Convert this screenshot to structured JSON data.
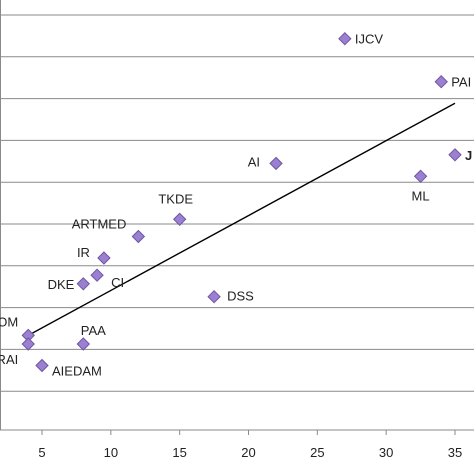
{
  "chart_data": {
    "type": "scatter",
    "title": "",
    "xlabel": "",
    "ylabel": "",
    "xlim": [
      1.5,
      37
    ],
    "x_ticks": [
      5,
      10,
      15,
      20,
      25,
      30,
      35
    ],
    "y_grid": true,
    "points": [
      {
        "label": "IJCV",
        "x": 27,
        "y": 0.91
      },
      {
        "label": "PAI",
        "x": 34,
        "y": 0.81
      },
      {
        "label": "J",
        "x": 35,
        "y": 0.64
      },
      {
        "label": "ML",
        "x": 32.5,
        "y": 0.59
      },
      {
        "label": "AI",
        "x": 22,
        "y": 0.62
      },
      {
        "label": "TKDE",
        "x": 15,
        "y": 0.49
      },
      {
        "label": "ARTMED",
        "x": 12,
        "y": 0.45
      },
      {
        "label": "IR",
        "x": 9.5,
        "y": 0.4
      },
      {
        "label": "CI",
        "x": 9,
        "y": 0.36
      },
      {
        "label": "DKE",
        "x": 8,
        "y": 0.34
      },
      {
        "label": "DSS",
        "x": 17.5,
        "y": 0.31
      },
      {
        "label": "COM",
        "x": 4,
        "y": 0.22
      },
      {
        "label": "PRAI",
        "x": 4,
        "y": 0.2
      },
      {
        "label": "PAA",
        "x": 8,
        "y": 0.2
      },
      {
        "label": "AIEDAM",
        "x": 5,
        "y": 0.15
      }
    ],
    "trendline": {
      "x": [
        4,
        35
      ],
      "y": [
        0.22,
        0.76
      ]
    }
  }
}
